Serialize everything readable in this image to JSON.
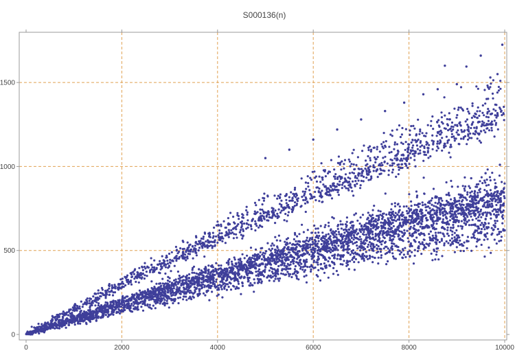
{
  "chart_data": {
    "type": "scatter",
    "title": "S000136(n)",
    "xlabel": "",
    "ylabel": "",
    "xlim": [
      0,
      10000
    ],
    "ylim": [
      0,
      1750
    ],
    "x_ticks": [
      0,
      2000,
      4000,
      6000,
      8000,
      10000
    ],
    "y_ticks": [
      0,
      500,
      1000,
      1500
    ],
    "x_tick_labels": [
      "0",
      "2000",
      "4000",
      "6000",
      "8000",
      "10000"
    ],
    "y_tick_labels": [
      "0",
      "500",
      "1000",
      "1500"
    ],
    "grid": true,
    "colors": {
      "points": "#3f3f9a",
      "grid": "#e0a050",
      "frame": "#999999",
      "text": "#444444"
    },
    "bands": [
      {
        "slope_start": 0.075,
        "slope_end": 0.062,
        "share": 0.13
      },
      {
        "slope_start": 0.085,
        "slope_end": 0.072,
        "share": 0.1
      },
      {
        "slope_start": 0.095,
        "slope_end": 0.081,
        "share": 0.3
      },
      {
        "slope_start": 0.105,
        "slope_end": 0.087,
        "share": 0.12
      },
      {
        "slope_start": 0.15,
        "slope_end": 0.13,
        "share": 0.18
      },
      {
        "slope_start": 0.17,
        "slope_end": 0.145,
        "share": 0.05
      }
    ],
    "series": [
      {
        "points": [
          [
            8750,
            1600
          ],
          [
            9500,
            1660
          ],
          [
            9950,
            1725
          ],
          [
            9850,
            1550
          ],
          [
            9700,
            1530
          ],
          [
            9200,
            1595
          ],
          [
            9000,
            1490
          ],
          [
            8600,
            1460
          ],
          [
            8300,
            1430
          ],
          [
            7900,
            1380
          ],
          [
            7500,
            1330
          ],
          [
            7000,
            1280
          ],
          [
            6500,
            1220
          ],
          [
            6000,
            1160
          ],
          [
            5500,
            1100
          ],
          [
            5000,
            1050
          ],
          [
            9900,
            1010
          ],
          [
            9600,
            960
          ],
          [
            9300,
            930
          ],
          [
            8900,
            880
          ],
          [
            10000,
            620
          ],
          [
            9800,
            640
          ],
          [
            9500,
            610
          ],
          [
            9000,
            590
          ],
          [
            8500,
            560
          ]
        ]
      }
    ]
  }
}
